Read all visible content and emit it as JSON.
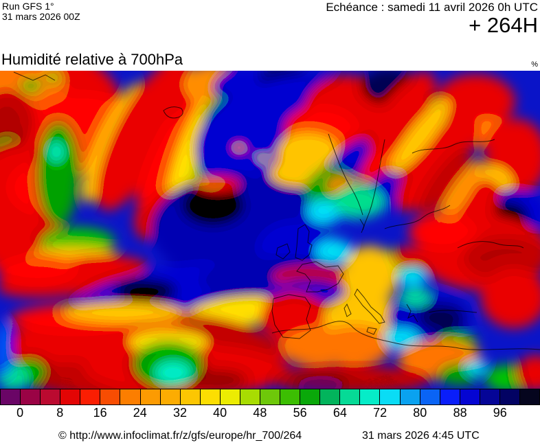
{
  "header": {
    "run_line1": "Run GFS 1°",
    "run_line2": "31 mars 2026 00Z",
    "echeance": "Echéance : samedi 11 avril 2026 0h UTC",
    "forecast_offset": "+ 264H"
  },
  "map": {
    "title": "Humidité relative à 700hPa",
    "unit": "%"
  },
  "colorbar": {
    "cell_colors": [
      "#6A0566",
      "#9A0345",
      "#BB0A30",
      "#E30505",
      "#FA1E02",
      "#F84D02",
      "#FC7E00",
      "#FC9B02",
      "#FCAC02",
      "#FCC602",
      "#FCDE02",
      "#ECEC02",
      "#A8DC02",
      "#6EC80A",
      "#3CBE02",
      "#0AA80A",
      "#02B45C",
      "#06DA96",
      "#06ECC8",
      "#0ADCF5",
      "#0AA2F0",
      "#0A64F5",
      "#0A1EFA",
      "#0505D2",
      "#050597",
      "#020263",
      "#05051E"
    ],
    "tick_values": [
      0,
      8,
      16,
      24,
      32,
      40,
      48,
      56,
      64,
      72,
      80,
      88,
      96
    ]
  },
  "footer": {
    "copyright": "© http://www.infoclimat.fr/z/gfs/europe/hr_700/264",
    "generated": "31 mars 2026  4:45 UTC"
  },
  "chart_data": {
    "type": "heatmap",
    "title": "Humidité relative à 700hPa",
    "unit": "%",
    "scale_min": 0,
    "scale_max": 104,
    "scale_step_per_cell": 4,
    "tick_labels": [
      0,
      8,
      16,
      24,
      32,
      40,
      48,
      56,
      64,
      72,
      80,
      88,
      96
    ],
    "palette": [
      "#6A0566",
      "#9A0345",
      "#BB0A30",
      "#E30505",
      "#FA1E02",
      "#F84D02",
      "#FC7E00",
      "#FC9B02",
      "#FCAC02",
      "#FCC602",
      "#FCDE02",
      "#ECEC02",
      "#A8DC02",
      "#6EC80A",
      "#3CBE02",
      "#0AA80A",
      "#02B45C",
      "#06DA96",
      "#06ECC8",
      "#0ADCF5",
      "#0AA2F0",
      "#0A64F5",
      "#0A1EFA",
      "#0505D2",
      "#050597",
      "#020263",
      "#05051E"
    ],
    "legend_position": "bottom",
    "notable_features": [
      "very moist (dark navy) air over the central North Atlantic, British Isles, Scandinavia-Baltic and Aegean",
      "dry (red/orange) bands over the subtropical Atlantic, Norwegian Sea, eastern Europe / Black Sea and North Africa",
      "narrow diagonal dry frontal bands crossing the mid-Atlantic and Scandinavia toward the Balkans"
    ]
  }
}
